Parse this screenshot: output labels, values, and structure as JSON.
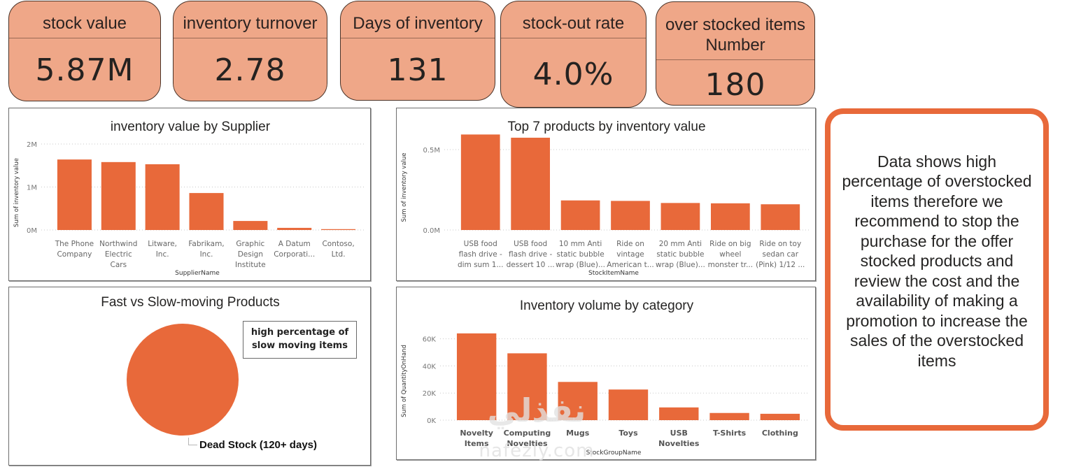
{
  "kpis": [
    {
      "title": "stock value",
      "value": "5.87M"
    },
    {
      "title": "inventory turnover",
      "value": "2.78"
    },
    {
      "title": "Days of inventory",
      "value": "131"
    },
    {
      "title": "stock-out rate",
      "value": "4.0%"
    },
    {
      "title": "over stocked items Number",
      "value": "180"
    }
  ],
  "colors": {
    "bar": "#E8693A",
    "kpi_fill": "#EFA788",
    "callout_border": "#E8693A"
  },
  "callout": {
    "text": "Data shows high percentage of overstocked items therefore we recommend to stop the purchase for the offer stocked products and review the cost and the availability of making a promotion to increase the sales of the overstocked items"
  },
  "pie_annotation": "high percentage of slow moving items",
  "watermark": {
    "arabic": "نفذلي",
    "latin": "nafezly.com"
  },
  "chart_data": [
    {
      "id": "supplier",
      "type": "bar",
      "title": "inventory value by Supplier",
      "xlabel": "SupplierName",
      "ylabel": "Sum of inventory value",
      "ylim": [
        0,
        2000000
      ],
      "yticks": [
        0,
        1000000,
        2000000
      ],
      "ytick_labels": [
        "0M",
        "1M",
        "2M"
      ],
      "grid": true,
      "categories": [
        [
          "The Phone",
          "Company"
        ],
        [
          "Northwind",
          "Electric",
          "Cars"
        ],
        [
          "Litware,",
          "Inc."
        ],
        [
          "Fabrikam,",
          "Inc."
        ],
        [
          "Graphic",
          "Design",
          "Institute"
        ],
        [
          "A Datum",
          "Corporati..."
        ],
        [
          "Contoso,",
          "Ltd."
        ]
      ],
      "values": [
        1640000,
        1580000,
        1530000,
        860000,
        210000,
        50000,
        20000
      ]
    },
    {
      "id": "top7",
      "type": "bar",
      "title": "Top 7 products by inventory value",
      "xlabel": "StockItemName",
      "ylabel": "Sum of inventory value",
      "ylim": [
        0,
        600000
      ],
      "yticks": [
        0,
        500000
      ],
      "ytick_labels": [
        "0.0M",
        "0.5M"
      ],
      "grid": true,
      "categories": [
        [
          "USB food",
          "flash drive -",
          "dim sum 1..."
        ],
        [
          "USB food",
          "flash drive -",
          "dessert 10 ..."
        ],
        [
          "10 mm Anti",
          "static bubble",
          "wrap (Blue)..."
        ],
        [
          "Ride on",
          "vintage",
          "American t..."
        ],
        [
          "20 mm Anti",
          "static bubble",
          "wrap (Blue)..."
        ],
        [
          "Ride on big",
          "wheel",
          "monster tr..."
        ],
        [
          "Ride on toy",
          "sedan car",
          "(Pink) 1/12 ..."
        ]
      ],
      "values": [
        594000,
        574000,
        184000,
        181000,
        168000,
        166000,
        160000
      ]
    },
    {
      "id": "pie",
      "type": "pie",
      "title": "Fast vs Slow-moving Products",
      "slices": [
        {
          "label": "Dead Stock (120+ days)",
          "value": 100
        }
      ]
    },
    {
      "id": "category",
      "type": "bar",
      "title": "Inventory volume by category",
      "xlabel": "StockGroupName",
      "ylabel": "Sum of QuantityOnHand",
      "ylim": [
        0,
        66000
      ],
      "yticks": [
        0,
        20000,
        40000,
        60000
      ],
      "ytick_labels": [
        "0K",
        "20K",
        "40K",
        "60K"
      ],
      "grid": true,
      "categories": [
        [
          "Novelty",
          "Items"
        ],
        [
          "Computing",
          "Novelties"
        ],
        [
          "Mugs"
        ],
        [
          "Toys"
        ],
        [
          "USB",
          "Novelties"
        ],
        [
          "T-Shirts"
        ],
        [
          "Clothing"
        ]
      ],
      "values": [
        64000,
        49300,
        28200,
        22600,
        9400,
        5300,
        4700
      ]
    }
  ]
}
